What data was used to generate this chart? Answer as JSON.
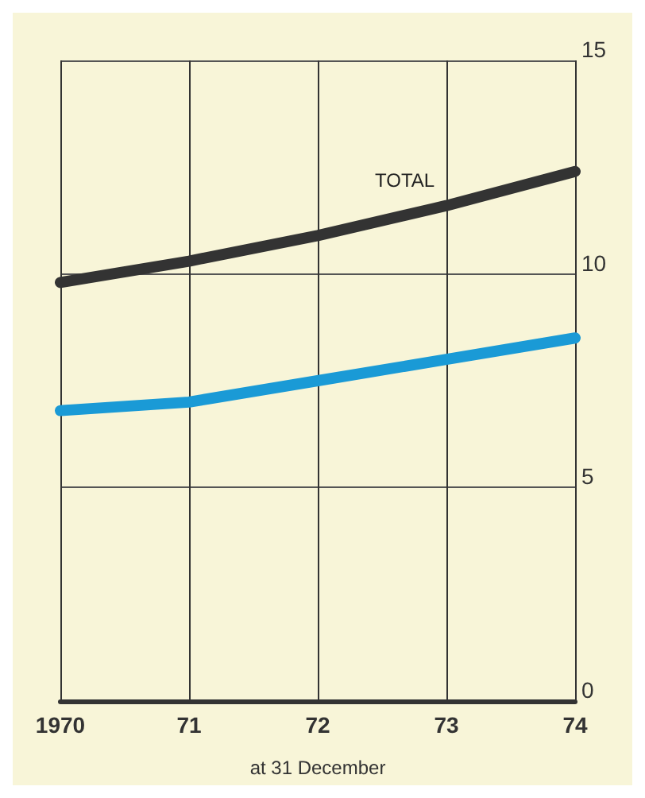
{
  "chart_data": {
    "type": "line",
    "xlabel": "at 31 December",
    "x": [
      1970,
      1971,
      1972,
      1973,
      1974
    ],
    "series": [
      {
        "name": "TOTAL",
        "color": "#333333",
        "values": [
          9.8,
          10.3,
          10.9,
          11.6,
          12.4
        ]
      },
      {
        "color": "#1a9ad6",
        "values": [
          6.8,
          7.0,
          7.5,
          8.0,
          8.5
        ]
      }
    ],
    "xlim": [
      1970,
      1974
    ],
    "xticks": [
      {
        "value": 1970,
        "label": "1970"
      },
      {
        "value": 1971,
        "label": "71"
      },
      {
        "value": 1972,
        "label": "72"
      },
      {
        "value": 1973,
        "label": "73"
      },
      {
        "value": 1974,
        "label": "74"
      }
    ],
    "ylim": [
      0,
      15
    ],
    "yticks": [
      0,
      5,
      10,
      15
    ],
    "grid": true,
    "marker": "none",
    "line_style": "solid"
  }
}
